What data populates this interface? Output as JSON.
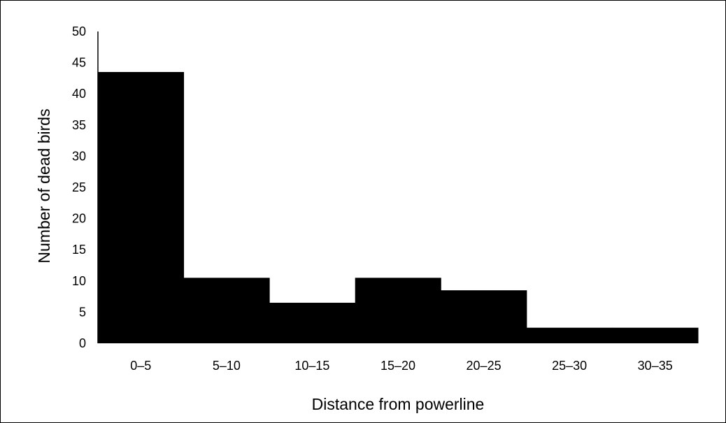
{
  "chart_data": {
    "type": "bar",
    "categories": [
      "0–5",
      "5–10",
      "10–15",
      "15–20",
      "20–25",
      "25–30",
      "30–35"
    ],
    "values": [
      43.5,
      10.5,
      6.5,
      10.5,
      8.5,
      2.5,
      2.5
    ],
    "xlabel": "Distance from powerline",
    "ylabel": "Number of dead birds",
    "ylim": [
      0,
      50
    ],
    "yticks": [
      0,
      5,
      10,
      15,
      20,
      25,
      30,
      35,
      40,
      45,
      50
    ],
    "grid": false,
    "legend": "none",
    "bar_color": "#000000"
  }
}
